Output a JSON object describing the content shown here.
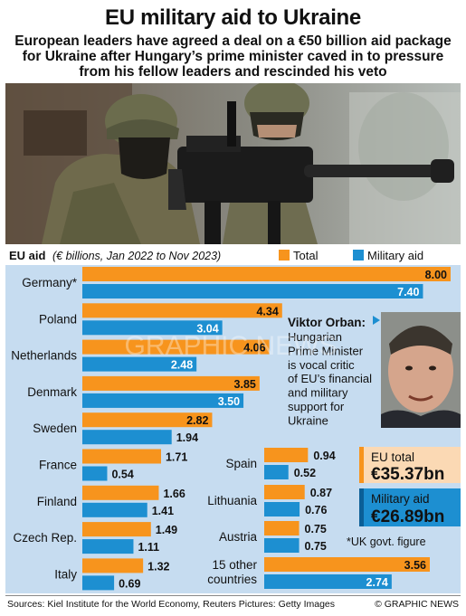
{
  "title": "EU military aid to Ukraine",
  "subtitle": "European leaders have agreed a deal on a €50 billion aid package for Ukraine after Hungary’s prime minister caved in to pressure from his fellow leaders and rescinded his veto",
  "photo": {
    "description_icon": "soldiers-machine-gun-photo"
  },
  "chart_data": {
    "type": "bar",
    "title": "EU aid",
    "unit_note": "(€ billions, Jan 2022 to Nov 2023)",
    "legend": {
      "placement": "top-right"
    },
    "series": [
      {
        "name": "Total",
        "color": "#f7941d"
      },
      {
        "name": "Military aid",
        "color": "#1d8fd1"
      }
    ],
    "left_group": [
      {
        "country": "Germany*",
        "total": 8.0,
        "military": 7.4,
        "total_label": "8.00",
        "military_label": "7.40"
      },
      {
        "country": "Poland",
        "total": 4.34,
        "military": 3.04,
        "total_label": "4.34",
        "military_label": "3.04"
      },
      {
        "country": "Netherlands",
        "total": 4.06,
        "military": 2.48,
        "total_label": "4.06",
        "military_label": "2.48"
      },
      {
        "country": "Denmark",
        "total": 3.85,
        "military": 3.5,
        "total_label": "3.85",
        "military_label": "3.50"
      },
      {
        "country": "Sweden",
        "total": 2.82,
        "military": 1.94,
        "total_label": "2.82",
        "military_label": "1.94"
      },
      {
        "country": "France",
        "total": 1.71,
        "military": 0.54,
        "total_label": "1.71",
        "military_label": "0.54"
      },
      {
        "country": "Finland",
        "total": 1.66,
        "military": 1.41,
        "total_label": "1.66",
        "military_label": "1.41"
      },
      {
        "country": "Czech Rep.",
        "total": 1.49,
        "military": 1.11,
        "total_label": "1.49",
        "military_label": "1.11"
      },
      {
        "country": "Italy",
        "total": 1.32,
        "military": 0.69,
        "total_label": "1.32",
        "military_label": "0.69"
      }
    ],
    "right_group": [
      {
        "country": "Spain",
        "total": 0.94,
        "military": 0.52,
        "total_label": "0.94",
        "military_label": "0.52"
      },
      {
        "country": "Lithuania",
        "total": 0.87,
        "military": 0.76,
        "total_label": "0.87",
        "military_label": "0.76"
      },
      {
        "country": "Austria",
        "total": 0.75,
        "military": 0.75,
        "total_label": "0.75",
        "military_label": "0.75"
      },
      {
        "country": "15 other countries",
        "total": 3.56,
        "military": 2.74,
        "total_label": "3.56",
        "military_label": "2.74"
      }
    ],
    "eu_total": {
      "label": "EU total",
      "value": "€35.37bn"
    },
    "military_total": {
      "label": "Military aid",
      "value": "€26.89bn"
    },
    "footnote": "*UK govt. figure",
    "callout": {
      "name": "Viktor Orban:",
      "lines": [
        "Hungarian",
        "Prime Minister",
        "is vocal critic",
        "of EU’s financial",
        "and military",
        "support for",
        "Ukraine"
      ]
    }
  },
  "footer": {
    "sources": "Sources: Kiel Institute for the World Economy, Reuters Pictures: Getty Images",
    "credit": "© GRAPHIC NEWS"
  },
  "watermark": "GRAPHIC NEWS"
}
